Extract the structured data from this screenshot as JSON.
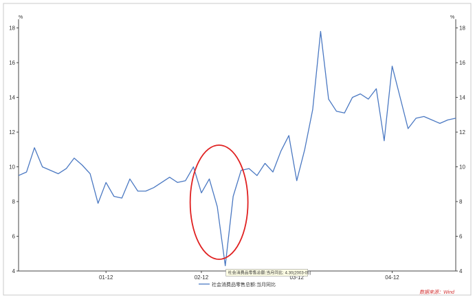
{
  "chart_data": {
    "type": "line",
    "x_tick_labels": [
      "01-12",
      "02-12",
      "03-12",
      "04-12"
    ],
    "ylim": [
      4,
      18.5
    ],
    "y_ticks": [
      4,
      6,
      8,
      10,
      12,
      14,
      16,
      18
    ],
    "y_unit_left": "%",
    "y_unit_right": "%",
    "grid": false,
    "legend_position": "bottom-center",
    "series": [
      {
        "name": "社会消费品零售总额:当月同比",
        "color": "#4a78c2",
        "values": [
          9.5,
          9.7,
          11.1,
          10.0,
          9.8,
          9.6,
          9.9,
          10.5,
          10.1,
          9.6,
          7.9,
          9.1,
          8.3,
          8.2,
          9.3,
          8.6,
          8.6,
          8.8,
          9.1,
          9.4,
          9.1,
          9.2,
          10.0,
          8.5,
          9.3,
          7.7,
          4.3,
          8.3,
          9.8,
          9.9,
          9.5,
          10.2,
          9.7,
          10.9,
          11.8,
          9.2,
          11.0,
          13.3,
          17.8,
          13.9,
          13.2,
          13.1,
          14.0,
          14.2,
          13.9,
          14.5,
          11.5,
          15.8,
          14.0,
          12.2,
          12.8,
          12.9,
          12.7,
          12.5,
          12.7,
          12.8
        ]
      }
    ],
    "tooltip": "社会消费品零售总额:当月同比: 4.30(2003-05)",
    "annotation": "red-ellipse-highlight-around-minimum",
    "source": "数据来源：Wind"
  }
}
